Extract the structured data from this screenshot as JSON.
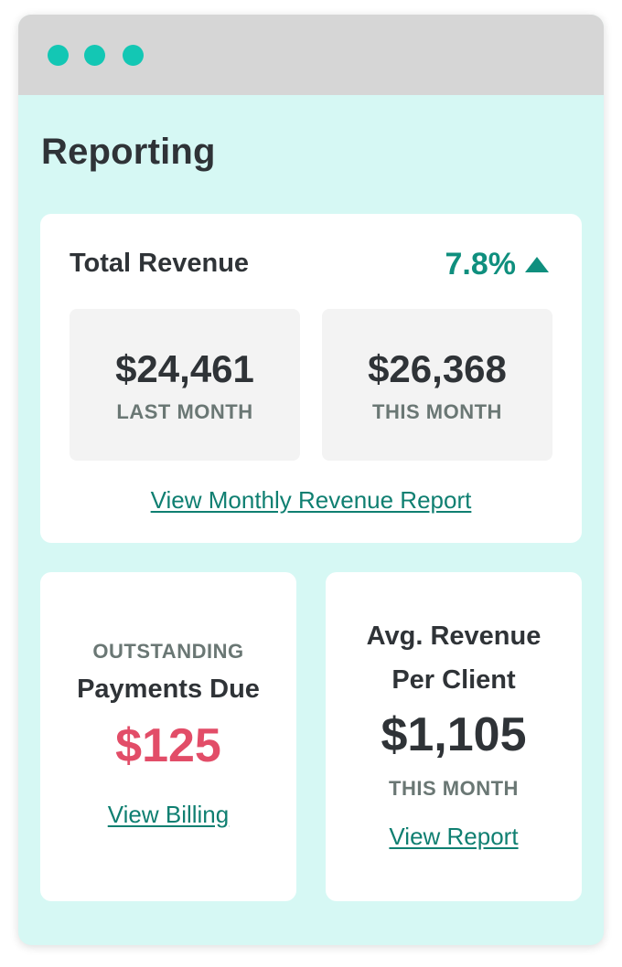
{
  "page": {
    "title": "Reporting"
  },
  "total_revenue": {
    "title": "Total Revenue",
    "change": "7.8%",
    "change_icon": "triangle-up-icon",
    "last_month": {
      "value": "$24,461",
      "label": "LAST MONTH"
    },
    "this_month": {
      "value": "$26,368",
      "label": "THIS MONTH"
    },
    "link": "View Monthly Revenue Report"
  },
  "outstanding": {
    "overline": "OUTSTANDING",
    "title": "Payments Due",
    "amount": "$125",
    "link": "View Billing"
  },
  "avg_revenue": {
    "title_line1": "Avg. Revenue",
    "title_line2": "Per Client",
    "amount": "$1,105",
    "label": "THIS MONTH",
    "link": "View Report"
  },
  "colors": {
    "accent": "#0f8f7e",
    "window_dot": "#13c7b4",
    "background": "#d6f8f4",
    "alert": "#e24d68"
  }
}
